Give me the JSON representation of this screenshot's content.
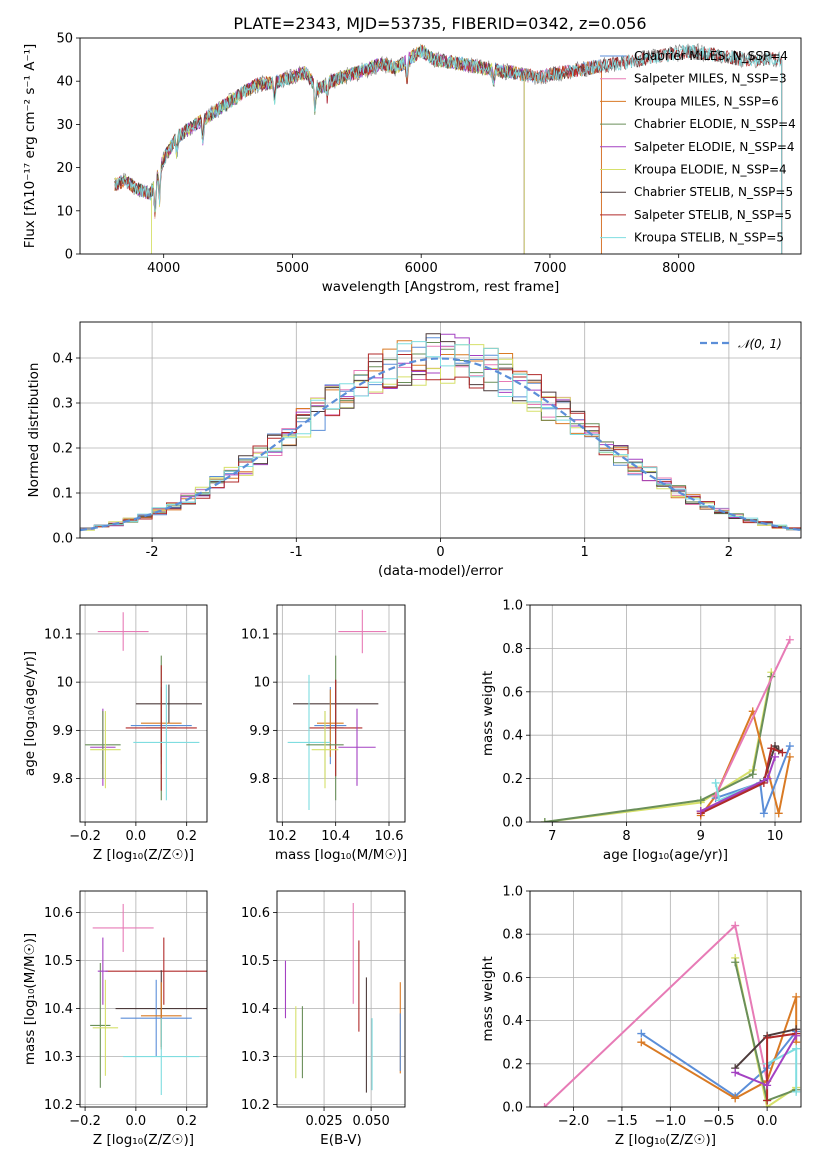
{
  "figure_title": "PLATE=2343, MJD=53735, FIBERID=0342, z=0.056",
  "chart_data": [
    {
      "type": "line",
      "id": "spectrum",
      "xlabel": "wavelength [Angstrom, rest frame]",
      "ylabel": "Flux [fλ10⁻¹⁷ erg cm⁻² s⁻¹ A⁻¹]",
      "xlim": [
        3350,
        8950
      ],
      "ylim": [
        0,
        50
      ],
      "xticks": [
        4000,
        5000,
        6000,
        7000,
        8000
      ],
      "yticks": [
        0,
        10,
        20,
        30,
        40,
        50
      ],
      "grid": false,
      "legend_position": "right",
      "series": [
        {
          "name": "Chabrier MILES, N_SSP=4",
          "color": "#5b8ed8",
          "x_end": 7400
        },
        {
          "name": "Salpeter MILES, N_SSP=3",
          "color": "#e77bb6",
          "x_end": 7400
        },
        {
          "name": "Kroupa MILES, N_SSP=6",
          "color": "#d97a24",
          "x_end": 7400
        },
        {
          "name": "Chabrier ELODIE, N_SSP=4",
          "color": "#6a8f5a",
          "x_end": 6800
        },
        {
          "name": "Salpeter ELODIE, N_SSP=4",
          "color": "#a441c2",
          "x_end": 6800
        },
        {
          "name": "Kroupa ELODIE, N_SSP=4",
          "color": "#d6e06a",
          "x_end": 6800
        },
        {
          "name": "Chabrier STELIB, N_SSP=5",
          "color": "#4d3b3b",
          "x_end": 8800
        },
        {
          "name": "Salpeter STELIB, N_SSP=5",
          "color": "#b02a2a",
          "x_end": 8800
        },
        {
          "name": "Kroupa STELIB, N_SSP=5",
          "color": "#7fdde0",
          "x_end": 8800
        }
      ],
      "observed_spectrum": {
        "color": "#8a8a8a",
        "x_range": [
          3620,
          8800
        ]
      },
      "continuum_knots": {
        "x": [
          3620,
          3700,
          3800,
          3900,
          3950,
          4000,
          4100,
          4200,
          4300,
          4400,
          4500,
          4700,
          4900,
          5100,
          5200,
          5300,
          5500,
          5700,
          5800,
          5900,
          6000,
          6100,
          6300,
          6500,
          6700,
          6900,
          7100,
          7300,
          7500,
          7700,
          7900,
          8100,
          8300,
          8500,
          8800
        ],
        "y": [
          16,
          17,
          15,
          14,
          18,
          22,
          27,
          29,
          31,
          33,
          35,
          39,
          40,
          42,
          38,
          40,
          42,
          44,
          43,
          45,
          47,
          45,
          44,
          43,
          42,
          41,
          42,
          43,
          44,
          45,
          46,
          47,
          46,
          45,
          45
        ]
      }
    },
    {
      "type": "line",
      "id": "residuals",
      "xlabel": "(data-model)/error",
      "ylabel": "Normed distribution",
      "xlim": [
        -2.5,
        2.5
      ],
      "ylim": [
        0,
        0.48
      ],
      "xticks": [
        -2,
        -1,
        0,
        1,
        2
      ],
      "yticks": [
        0.0,
        0.1,
        0.2,
        0.3,
        0.4
      ],
      "grid": true,
      "legend": {
        "label": "𝒩(0, 1)",
        "position": "top-right"
      },
      "gaussian": {
        "mean": 0,
        "sigma": 1,
        "color": "#5b8ed8",
        "style": "dashed"
      },
      "histogram": {
        "bin_width": 0.1,
        "x_start": -2.5,
        "bins": 50,
        "type": "step"
      }
    },
    {
      "type": "scatter",
      "id": "age-vs-Z",
      "xlabel": "Z [log₁₀(Z/Z☉)]",
      "ylabel": "age  [log₁₀(age/yr)]",
      "xlim": [
        -0.22,
        0.28
      ],
      "ylim": [
        9.71,
        10.16
      ],
      "xticks": [
        -0.2,
        0.0,
        0.2
      ],
      "xtick_labels": [
        "−0.2",
        "0.0",
        "0.2"
      ],
      "yticks": [
        9.8,
        9.9,
        10.0,
        10.1
      ],
      "grid": true,
      "points": [
        {
          "x": -0.05,
          "y": 10.105,
          "xerr": 0.1,
          "yerr": 0.04,
          "color": "#e77bb6"
        },
        {
          "x": 0.13,
          "y": 9.955,
          "xerr": 0.13,
          "yerr": 0.04,
          "color": "#4d3b3b"
        },
        {
          "x": 0.1,
          "y": 9.91,
          "xerr": 0.12,
          "yerr": 0.08,
          "color": "#5b8ed8"
        },
        {
          "x": 0.1,
          "y": 9.915,
          "xerr": 0.08,
          "yerr": 0.07,
          "color": "#d97a24"
        },
        {
          "x": 0.1,
          "y": 9.905,
          "xerr": 0.06,
          "yerr": 0.15,
          "color": "#6a8f5a"
        },
        {
          "x": 0.1,
          "y": 9.905,
          "xerr": 0.14,
          "yerr": 0.13,
          "color": "#b02a2a"
        },
        {
          "x": 0.12,
          "y": 9.875,
          "xerr": 0.13,
          "yerr": 0.12,
          "color": "#7fdde0"
        },
        {
          "x": -0.13,
          "y": 9.865,
          "xerr": 0.05,
          "yerr": 0.08,
          "color": "#a441c2"
        },
        {
          "x": -0.13,
          "y": 9.87,
          "xerr": 0.07,
          "yerr": 0.07,
          "color": "#6a8f5a"
        },
        {
          "x": -0.12,
          "y": 9.86,
          "xerr": 0.06,
          "yerr": 0.08,
          "color": "#d6e06a"
        }
      ]
    },
    {
      "type": "scatter",
      "id": "age-vs-mass",
      "xlabel": "mass [log₁₀(M/M☉)]",
      "ylabel": "",
      "xlim": [
        10.18,
        10.66
      ],
      "ylim": [
        9.71,
        10.16
      ],
      "xticks": [
        10.2,
        10.4,
        10.6
      ],
      "yticks": [
        9.8,
        9.9,
        10.0,
        10.1
      ],
      "grid": true,
      "points": [
        {
          "x": 10.5,
          "y": 10.105,
          "xerr": 0.09,
          "yerr": 0.045,
          "color": "#e77bb6"
        },
        {
          "x": 10.4,
          "y": 9.955,
          "xerr": 0.16,
          "yerr": 0.05,
          "color": "#4d3b3b"
        },
        {
          "x": 10.38,
          "y": 9.91,
          "xerr": 0.06,
          "yerr": 0.08,
          "color": "#5b8ed8"
        },
        {
          "x": 10.38,
          "y": 9.915,
          "xerr": 0.05,
          "yerr": 0.07,
          "color": "#d97a24"
        },
        {
          "x": 10.4,
          "y": 9.905,
          "xerr": 0.03,
          "yerr": 0.15,
          "color": "#6a8f5a"
        },
        {
          "x": 10.4,
          "y": 9.905,
          "xerr": 0.1,
          "yerr": 0.1,
          "color": "#b02a2a"
        },
        {
          "x": 10.3,
          "y": 9.875,
          "xerr": 0.08,
          "yerr": 0.14,
          "color": "#7fdde0"
        },
        {
          "x": 10.48,
          "y": 9.865,
          "xerr": 0.07,
          "yerr": 0.08,
          "color": "#a441c2"
        },
        {
          "x": 10.36,
          "y": 9.87,
          "xerr": 0.07,
          "yerr": 0.07,
          "color": "#6a8f5a"
        },
        {
          "x": 10.36,
          "y": 9.86,
          "xerr": 0.05,
          "yerr": 0.08,
          "color": "#d6e06a"
        }
      ]
    },
    {
      "type": "line",
      "id": "weight-vs-age",
      "xlabel": "age  [log₁₀(age/yr)]",
      "ylabel": "mass weight",
      "xlim": [
        6.7,
        10.35
      ],
      "ylim": [
        0,
        1.0
      ],
      "xticks": [
        7,
        8,
        9,
        10
      ],
      "yticks": [
        0.0,
        0.2,
        0.4,
        0.6,
        0.8,
        1.0
      ],
      "grid": true,
      "marker": "+",
      "series": [
        {
          "color": "#d6e06a",
          "x": [
            6.9,
            9.0,
            9.7,
            9.95
          ],
          "y": [
            0.0,
            0.09,
            0.24,
            0.69
          ]
        },
        {
          "color": "#6a8f5a",
          "x": [
            6.9,
            9.0,
            9.7,
            9.95
          ],
          "y": [
            0.0,
            0.1,
            0.22,
            0.67
          ]
        },
        {
          "color": "#d97a24",
          "x": [
            9.0,
            9.2,
            9.7,
            10.05,
            10.2
          ],
          "y": [
            0.03,
            0.12,
            0.51,
            0.04,
            0.3
          ]
        },
        {
          "color": "#5b8ed8",
          "x": [
            9.2,
            9.8,
            9.85,
            10.2
          ],
          "y": [
            0.11,
            0.18,
            0.04,
            0.35
          ]
        },
        {
          "color": "#e77bb6",
          "x": [
            9.2,
            10.2
          ],
          "y": [
            0.12,
            0.84
          ]
        },
        {
          "color": "#7fdde0",
          "x": [
            9.2,
            9.25,
            9.9
          ],
          "y": [
            0.18,
            0.1,
            0.2
          ]
        },
        {
          "color": "#4d3b3b",
          "x": [
            9.0,
            9.85,
            10.0,
            10.05
          ],
          "y": [
            0.05,
            0.19,
            0.35,
            0.33
          ]
        },
        {
          "color": "#b02a2a",
          "x": [
            9.0,
            9.85,
            9.95,
            10.1
          ],
          "y": [
            0.04,
            0.18,
            0.34,
            0.32
          ]
        },
        {
          "color": "#a441c2",
          "x": [
            9.0,
            9.9,
            10.0
          ],
          "y": [
            0.05,
            0.2,
            0.3
          ]
        }
      ]
    },
    {
      "type": "scatter",
      "id": "mass-vs-Z",
      "xlabel": "Z [log₁₀(Z/Z☉)]",
      "ylabel": "mass [log₁₀(M/M☉)]",
      "xlim": [
        -0.22,
        0.28
      ],
      "ylim": [
        10.195,
        10.645
      ],
      "xticks": [
        -0.2,
        0.0,
        0.2
      ],
      "xtick_labels": [
        "−0.2",
        "0.0",
        "0.2"
      ],
      "yticks": [
        10.2,
        10.3,
        10.4,
        10.5,
        10.6
      ],
      "grid": true,
      "points": [
        {
          "x": -0.05,
          "y": 10.568,
          "xerr": 0.12,
          "yerr": 0.05,
          "color": "#e77bb6"
        },
        {
          "x": 0.11,
          "y": 10.478,
          "xerr": 0.23,
          "yerr": 0.07,
          "color": "#b02a2a"
        },
        {
          "x": 0.1,
          "y": 10.4,
          "xerr": 0.18,
          "yerr": 0.08,
          "color": "#4d3b3b"
        },
        {
          "x": 0.08,
          "y": 10.38,
          "xerr": 0.14,
          "yerr": 0.08,
          "color": "#5b8ed8"
        },
        {
          "x": 0.1,
          "y": 10.385,
          "xerr": 0.08,
          "yerr": 0.07,
          "color": "#d97a24"
        },
        {
          "x": 0.1,
          "y": 10.3,
          "xerr": 0.15,
          "yerr": 0.08,
          "color": "#7fdde0"
        },
        {
          "x": -0.14,
          "y": 10.365,
          "xerr": 0.04,
          "yerr": 0.13,
          "color": "#6a8f5a"
        },
        {
          "x": -0.12,
          "y": 10.36,
          "xerr": 0.05,
          "yerr": 0.1,
          "color": "#d6e06a"
        },
        {
          "x": -0.13,
          "y": 10.478,
          "xerr": 0.02,
          "yerr": 0.07,
          "color": "#a441c2"
        }
      ]
    },
    {
      "type": "scatter",
      "id": "mass-vs-EBV",
      "xlabel": "E(B-V)",
      "ylabel": "",
      "xlim": [
        0.0,
        0.068
      ],
      "ylim": [
        10.195,
        10.645
      ],
      "xticks": [
        0.025,
        0.05
      ],
      "xtick_labels": [
        "0.025",
        "0.050"
      ],
      "yticks": [
        10.2,
        10.3,
        10.4,
        10.5,
        10.6
      ],
      "grid": true,
      "points": [
        {
          "x": 0.0045,
          "y": 10.44,
          "yerr": 0.06,
          "color": "#a441c2"
        },
        {
          "x": 0.01,
          "y": 10.33,
          "yerr": 0.075,
          "color": "#d6e06a"
        },
        {
          "x": 0.0135,
          "y": 10.33,
          "yerr": 0.075,
          "color": "#6a8f5a"
        },
        {
          "x": 0.0405,
          "y": 10.515,
          "yerr": 0.105,
          "color": "#e77bb6"
        },
        {
          "x": 0.0435,
          "y": 10.447,
          "yerr": 0.095,
          "color": "#b02a2a"
        },
        {
          "x": 0.0475,
          "y": 10.345,
          "yerr": 0.12,
          "color": "#4d3b3b"
        },
        {
          "x": 0.0505,
          "y": 10.305,
          "yerr": 0.075,
          "color": "#7fdde0"
        },
        {
          "x": 0.0655,
          "y": 10.36,
          "yerr": 0.095,
          "color": "#d97a24"
        },
        {
          "x": 0.0655,
          "y": 10.33,
          "yerr": 0.06,
          "color": "#5b8ed8"
        }
      ]
    },
    {
      "type": "line",
      "id": "weight-vs-Z",
      "xlabel": "Z [log₁₀(Z/Z☉)]",
      "ylabel": "mass weight",
      "xlim": [
        -2.45,
        0.35
      ],
      "ylim": [
        0,
        1.0
      ],
      "xticks": [
        -2.0,
        -1.5,
        -1.0,
        -0.5,
        0.0
      ],
      "xtick_labels": [
        "−2.0",
        "−1.5",
        "−1.0",
        "−0.5",
        "0.0"
      ],
      "yticks": [
        0.0,
        0.2,
        0.4,
        0.6,
        0.8,
        1.0
      ],
      "grid": true,
      "marker": "+",
      "series": [
        {
          "color": "#e77bb6",
          "x": [
            -2.3,
            -0.33,
            0.0
          ],
          "y": [
            0.0,
            0.84,
            0.12
          ]
        },
        {
          "color": "#5b8ed8",
          "x": [
            -1.3,
            -0.33,
            0.0,
            0.3
          ],
          "y": [
            0.34,
            0.05,
            0.18,
            0.35
          ]
        },
        {
          "color": "#d97a24",
          "x": [
            -1.3,
            -0.33,
            0.0,
            0.3,
            0.3
          ],
          "y": [
            0.3,
            0.04,
            0.12,
            0.51,
            0.3
          ]
        },
        {
          "color": "#d6e06a",
          "x": [
            -0.33,
            0.0,
            0.3
          ],
          "y": [
            0.69,
            0.0,
            0.09
          ]
        },
        {
          "color": "#6a8f5a",
          "x": [
            -0.33,
            0.0,
            0.3
          ],
          "y": [
            0.67,
            0.03,
            0.08
          ]
        },
        {
          "color": "#7fdde0",
          "x": [
            0.0,
            0.3,
            0.3
          ],
          "y": [
            0.2,
            0.27,
            0.07
          ]
        },
        {
          "color": "#4d3b3b",
          "x": [
            -0.33,
            0.0,
            0.3
          ],
          "y": [
            0.18,
            0.33,
            0.36
          ]
        },
        {
          "color": "#b02a2a",
          "x": [
            0.0,
            0.0,
            0.3
          ],
          "y": [
            0.03,
            0.32,
            0.34
          ]
        },
        {
          "color": "#a441c2",
          "x": [
            -0.33,
            0.0,
            0.3
          ],
          "y": [
            0.16,
            0.1,
            0.33
          ]
        }
      ]
    }
  ]
}
